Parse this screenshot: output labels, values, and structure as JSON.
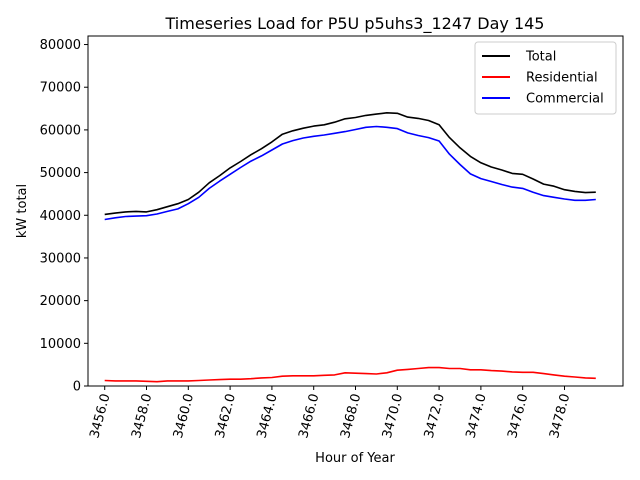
{
  "chart_data": {
    "type": "line",
    "title": "Timeseries Load for P5U p5uhs3_1247  Day 145",
    "xlabel": "Hour of Year",
    "ylabel": "kW total",
    "xlim": [
      3455.2,
      3480.8
    ],
    "ylim": [
      0,
      82000
    ],
    "xticks": [
      3456,
      3458,
      3460,
      3462,
      3464,
      3466,
      3468,
      3470,
      3472,
      3474,
      3476,
      3478
    ],
    "xtick_labels": [
      "3456.0",
      "3458.0",
      "3460.0",
      "3462.0",
      "3464.0",
      "3466.0",
      "3468.0",
      "3470.0",
      "3472.0",
      "3474.0",
      "3476.0",
      "3478.0"
    ],
    "yticks": [
      0,
      10000,
      20000,
      30000,
      40000,
      50000,
      60000,
      70000,
      80000
    ],
    "ytick_labels": [
      "0",
      "10000",
      "20000",
      "30000",
      "40000",
      "50000",
      "60000",
      "70000",
      "80000"
    ],
    "grid": false,
    "legend_position": "top-right",
    "x": [
      3456.0,
      3456.5,
      3457.0,
      3457.5,
      3458.0,
      3458.5,
      3459.0,
      3459.5,
      3460.0,
      3460.5,
      3461.0,
      3461.5,
      3462.0,
      3462.5,
      3463.0,
      3463.5,
      3464.0,
      3464.5,
      3465.0,
      3465.5,
      3466.0,
      3466.5,
      3467.0,
      3467.5,
      3468.0,
      3468.5,
      3469.0,
      3469.5,
      3470.0,
      3470.5,
      3471.0,
      3471.5,
      3472.0,
      3472.5,
      3473.0,
      3473.5,
      3474.0,
      3474.5,
      3475.0,
      3475.5,
      3476.0,
      3476.5,
      3477.0,
      3477.5,
      3478.0,
      3478.5,
      3479.0,
      3479.5
    ],
    "series": [
      {
        "name": "Total",
        "color": "#000000",
        "values": [
          40200,
          40500,
          40800,
          40900,
          40800,
          41300,
          42000,
          42700,
          43700,
          45400,
          47600,
          49300,
          51100,
          52600,
          54200,
          55600,
          57200,
          59000,
          59800,
          60400,
          60900,
          61200,
          61800,
          62600,
          62900,
          63400,
          63700,
          64000,
          63900,
          63000,
          62700,
          62200,
          61200,
          58200,
          55800,
          53800,
          52300,
          51300,
          50600,
          49800,
          49600,
          48500,
          47300,
          46800,
          46000,
          45600,
          45300,
          45400
        ]
      },
      {
        "name": "Residential",
        "color": "#ff0000",
        "values": [
          1300,
          1200,
          1200,
          1200,
          1100,
          1000,
          1200,
          1200,
          1200,
          1300,
          1400,
          1500,
          1600,
          1600,
          1700,
          1900,
          2000,
          2300,
          2400,
          2400,
          2400,
          2500,
          2600,
          3100,
          3000,
          2900,
          2800,
          3100,
          3700,
          3900,
          4100,
          4300,
          4300,
          4100,
          4100,
          3800,
          3800,
          3600,
          3500,
          3300,
          3200,
          3200,
          2900,
          2600,
          2300,
          2100,
          1900,
          1800
        ]
      },
      {
        "name": "Commercial",
        "color": "#0000ff",
        "values": [
          39000,
          39400,
          39700,
          39800,
          39900,
          40300,
          40900,
          41500,
          42700,
          44200,
          46300,
          48000,
          49600,
          51200,
          52700,
          53900,
          55300,
          56700,
          57500,
          58100,
          58500,
          58800,
          59200,
          59600,
          60100,
          60600,
          60800,
          60600,
          60300,
          59300,
          58700,
          58200,
          57400,
          54300,
          51900,
          49700,
          48600,
          47900,
          47200,
          46600,
          46300,
          45400,
          44600,
          44200,
          43800,
          43500,
          43500,
          43700
        ]
      }
    ]
  }
}
